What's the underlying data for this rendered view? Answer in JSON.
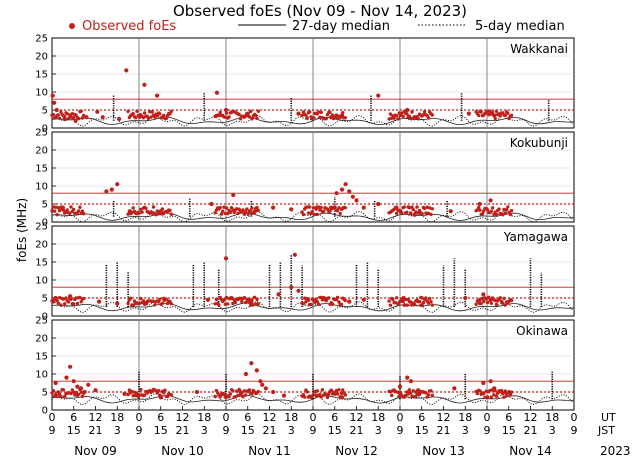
{
  "chart_data": {
    "type": "scatter",
    "title": "Observed foEs (Nov 09 - Nov 14, 2023)",
    "ylabel": "foEs (MHz)",
    "ylim": [
      0,
      25
    ],
    "yticks": [
      0,
      5,
      10,
      15,
      20,
      25
    ],
    "ytick_labels": [
      "0",
      "5",
      "10",
      "15",
      "20",
      "25"
    ],
    "x_hour_ticks_ut": [
      "0",
      "6",
      "12",
      "18",
      "0",
      "6",
      "12",
      "18",
      "0",
      "6",
      "12",
      "18",
      "0",
      "6",
      "12",
      "18",
      "0",
      "6",
      "12",
      "18",
      "0",
      "6",
      "12",
      "18",
      "0"
    ],
    "x_hour_ticks_jst": [
      "9",
      "15",
      "21",
      "3",
      "9",
      "15",
      "21",
      "3",
      "9",
      "15",
      "21",
      "3",
      "9",
      "15",
      "21",
      "3",
      "9",
      "15",
      "21",
      "3",
      "9",
      "15",
      "21",
      "3",
      "9"
    ],
    "x_row_label_ut": "UT",
    "x_row_label_jst": "JST",
    "days": [
      "Nov 09",
      "Nov 10",
      "Nov 11",
      "Nov 12",
      "Nov 13",
      "Nov 14"
    ],
    "year": "2023",
    "legend": [
      {
        "label": "Observed foEs",
        "style": "red-dots"
      },
      {
        "label": "27-day median",
        "style": "solid-line"
      },
      {
        "label": "5-day median",
        "style": "dotted-line"
      }
    ],
    "reference_lines_mhz": {
      "red_solid": 8,
      "red_dotted": 5
    },
    "stations": [
      {
        "name": "Wakkanai",
        "baseline": 2.0,
        "series": [
          {
            "name": "Observed foEs",
            "values": [
              [
                0.2,
                9
              ],
              [
                0.6,
                7
              ],
              [
                1.3,
                5
              ],
              [
                3.5,
                2.5
              ],
              [
                6.5,
                2
              ],
              [
                9.5,
                3
              ],
              [
                12.5,
                4.5
              ],
              [
                14,
                3
              ],
              [
                18.5,
                2.5
              ],
              [
                20.5,
                16
              ],
              [
                25.5,
                12
              ],
              [
                29,
                9
              ],
              [
                45.5,
                9.8
              ],
              [
                48,
                5
              ],
              [
                54,
                3.5
              ],
              [
                68,
                4
              ],
              [
                77,
                3
              ],
              [
                80,
                3.5
              ],
              [
                90,
                9
              ],
              [
                98,
                5
              ],
              [
                100,
                3
              ],
              [
                115,
                4
              ],
              [
                120,
                4.5
              ],
              [
                122,
                3.5
              ]
            ]
          },
          {
            "name": "5-day median spikes",
            "values": [
              [
                17,
                9
              ],
              [
                42,
                10
              ],
              [
                66,
                8.5
              ],
              [
                88,
                9
              ],
              [
                113,
                10
              ],
              [
                137,
                8
              ]
            ]
          }
        ]
      },
      {
        "name": "Kokubunji",
        "baseline": 1.5,
        "series": [
          {
            "name": "Observed foEs",
            "values": [
              [
                3,
                4
              ],
              [
                15,
                8.5
              ],
              [
                16.5,
                9
              ],
              [
                18,
                10.5
              ],
              [
                21.5,
                3
              ],
              [
                30,
                3
              ],
              [
                44,
                5
              ],
              [
                50,
                7.5
              ],
              [
                56,
                3
              ],
              [
                61,
                4
              ],
              [
                66,
                3.5
              ],
              [
                73,
                4
              ],
              [
                77,
                4
              ],
              [
                78.5,
                8
              ],
              [
                80,
                9
              ],
              [
                81,
                10.5
              ],
              [
                82,
                8.5
              ],
              [
                83,
                7
              ],
              [
                84,
                6
              ],
              [
                86,
                4
              ],
              [
                90,
                5
              ],
              [
                95,
                4
              ],
              [
                100,
                2
              ],
              [
                110,
                3
              ],
              [
                118,
                5
              ],
              [
                121,
                6
              ]
            ]
          },
          {
            "name": "5-day median spikes",
            "values": [
              [
                17,
                6
              ],
              [
                38,
                6.5
              ],
              [
                55,
                6
              ],
              [
                78,
                7
              ],
              [
                89,
                6
              ],
              [
                109,
                6
              ]
            ]
          }
        ]
      },
      {
        "name": "Yamagawa",
        "baseline": 2.5,
        "series": [
          {
            "name": "Observed foEs",
            "values": [
              [
                1,
                5
              ],
              [
                5,
                5.5
              ],
              [
                13,
                4
              ],
              [
                18,
                3.5
              ],
              [
                26,
                3.5
              ],
              [
                31,
                4.5
              ],
              [
                43,
                4.5
              ],
              [
                48,
                16
              ],
              [
                49.5,
                5
              ],
              [
                55,
                4
              ],
              [
                62.5,
                6
              ],
              [
                66,
                8
              ],
              [
                67,
                17
              ],
              [
                68,
                7
              ],
              [
                75,
                5
              ],
              [
                82,
                4
              ],
              [
                86,
                4.5
              ],
              [
                97,
                5
              ],
              [
                102,
                3
              ],
              [
                114,
                5
              ],
              [
                118,
                4.5
              ],
              [
                119,
                6
              ],
              [
                121,
                4.5
              ]
            ]
          },
          {
            "name": "5-day median spikes",
            "values": [
              [
                15,
                14.5
              ],
              [
                18,
                15
              ],
              [
                21,
                12.5
              ],
              [
                39,
                14.5
              ],
              [
                42,
                15
              ],
              [
                46,
                13
              ],
              [
                60,
                14.5
              ],
              [
                63,
                15
              ],
              [
                66,
                17
              ],
              [
                69,
                14
              ],
              [
                84,
                14.5
              ],
              [
                87,
                15
              ],
              [
                90,
                13
              ],
              [
                108,
                14
              ],
              [
                111,
                16
              ],
              [
                114,
                13
              ],
              [
                132,
                16
              ],
              [
                135,
                12
              ]
            ]
          }
        ]
      },
      {
        "name": "Okinawa",
        "baseline": 3.0,
        "series": [
          {
            "name": "Observed foEs",
            "values": [
              [
                1,
                7.5
              ],
              [
                4,
                9
              ],
              [
                5,
                12
              ],
              [
                6,
                8
              ],
              [
                7,
                6.5
              ],
              [
                8,
                6
              ],
              [
                9,
                5
              ],
              [
                10,
                7
              ],
              [
                12,
                5.5
              ],
              [
                20,
                4.5
              ],
              [
                30,
                3.5
              ],
              [
                40,
                5
              ],
              [
                52,
                5
              ],
              [
                53.5,
                10
              ],
              [
                55,
                13
              ],
              [
                56.5,
                11
              ],
              [
                57.5,
                8
              ],
              [
                58,
                7
              ],
              [
                59,
                6
              ],
              [
                61,
                5
              ],
              [
                64,
                4
              ],
              [
                73,
                4
              ],
              [
                80,
                3.5
              ],
              [
                96,
                6.5
              ],
              [
                98,
                9
              ],
              [
                99,
                8
              ],
              [
                101,
                5.5
              ],
              [
                111,
                6
              ],
              [
                119,
                7.5
              ],
              [
                121,
                8
              ],
              [
                122,
                6
              ],
              [
                125,
                5
              ]
            ]
          },
          {
            "name": "5-day median spikes",
            "values": [
              [
                24,
                11
              ],
              [
                48,
                10
              ],
              [
                72,
                10
              ],
              [
                96,
                9.5
              ],
              [
                114,
                10
              ],
              [
                138,
                11
              ]
            ]
          }
        ]
      }
    ]
  }
}
